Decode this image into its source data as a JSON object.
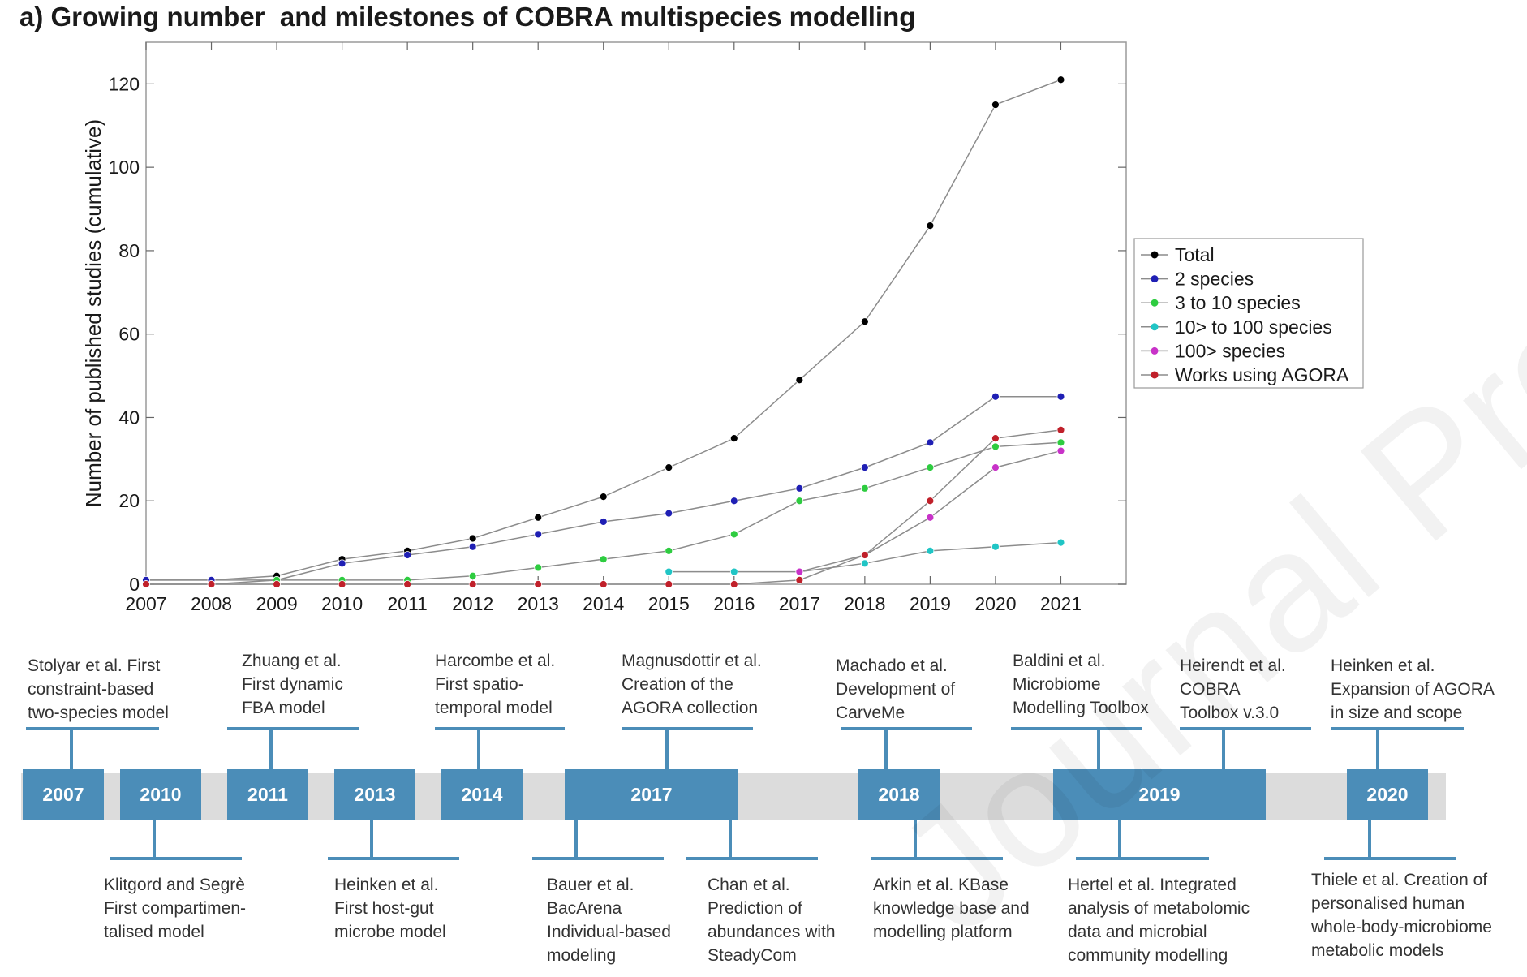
{
  "title": "a) Growing number  and milestones of COBRA multispecies modelling",
  "watermark": "Journal Pre-proof",
  "chart_data": {
    "type": "line",
    "ylabel": "Number of published studies (cumulative)",
    "xlabel": "",
    "x": [
      2007,
      2008,
      2009,
      2010,
      2011,
      2012,
      2013,
      2014,
      2015,
      2016,
      2017,
      2018,
      2019,
      2020,
      2021
    ],
    "xlim": [
      2007,
      2022
    ],
    "ylim": [
      0,
      130
    ],
    "yticks": [
      0,
      20,
      40,
      60,
      80,
      100,
      120
    ],
    "grid": false,
    "legend_position": "right",
    "series": [
      {
        "name": "Total",
        "color": "#000000",
        "values": [
          1,
          1,
          2,
          6,
          8,
          11,
          16,
          21,
          28,
          35,
          49,
          63,
          86,
          115,
          121
        ]
      },
      {
        "name": "2 species",
        "color": "#1f1fb4",
        "values": [
          1,
          1,
          1,
          5,
          7,
          9,
          12,
          15,
          17,
          20,
          23,
          28,
          34,
          45,
          45
        ]
      },
      {
        "name": "3 to 10 species",
        "color": "#2ecc40",
        "values": [
          0,
          0,
          1,
          1,
          1,
          2,
          4,
          6,
          8,
          12,
          20,
          23,
          28,
          33,
          34
        ]
      },
      {
        "name": "10> to 100 species",
        "color": "#20c5c5",
        "start": 2015,
        "values": [
          null,
          null,
          null,
          null,
          null,
          null,
          null,
          null,
          3,
          3,
          3,
          5,
          8,
          9,
          10
        ]
      },
      {
        "name": "100> species",
        "color": "#c832c8",
        "start": 2017,
        "values": [
          null,
          null,
          null,
          null,
          null,
          null,
          null,
          null,
          null,
          null,
          3,
          7,
          16,
          28,
          32
        ]
      },
      {
        "name": "Works using AGORA",
        "color": "#c0202a",
        "values": [
          0,
          0,
          0,
          0,
          0,
          0,
          0,
          0,
          0,
          0,
          1,
          7,
          20,
          35,
          37
        ]
      }
    ]
  },
  "timeline": {
    "years": [
      {
        "label": "2007"
      },
      {
        "label": "2010"
      },
      {
        "label": "2011"
      },
      {
        "label": "2013"
      },
      {
        "label": "2014"
      },
      {
        "label": "2017"
      },
      {
        "label": "2018"
      },
      {
        "label": "2019"
      },
      {
        "label": "2020"
      }
    ],
    "top_milestones": [
      {
        "text": "Stolyar et al. First\nconstraint-based\ntwo-species model"
      },
      {
        "text": "Zhuang et al.\nFirst dynamic\nFBA model"
      },
      {
        "text": "Harcombe et al.\nFirst spatio-\ntemporal model"
      },
      {
        "text": "Magnusdottir et al.\nCreation of the\nAGORA collection"
      },
      {
        "text": "Machado et al.\nDevelopment of\nCarveMe"
      },
      {
        "text": "Baldini et al.\nMicrobiome\nModelling Toolbox"
      },
      {
        "text": "Heirendt et al.\nCOBRA\nToolbox v.3.0"
      },
      {
        "text": "Heinken et al.\nExpansion of AGORA\nin size and scope"
      }
    ],
    "bottom_milestones": [
      {
        "text": "Klitgord and Segrè\nFirst compartimen-\ntalised model"
      },
      {
        "text": "Heinken et al.\nFirst host-gut\nmicrobe model"
      },
      {
        "text": "Bauer et al.\nBacArena\nIndividual-based\nmodeling"
      },
      {
        "text": "Chan et al.\nPrediction of\nabundances with\nSteadyCom"
      },
      {
        "text": "Arkin et al. KBase\nknowledge base and\nmodelling platform"
      },
      {
        "text": "Hertel et al. Integrated\nanalysis of metabolomic\ndata and microbial\ncommunity modelling"
      },
      {
        "text": "Thiele et al. Creation of\npersonalised human\nwhole-body-microbiome\nmetabolic models"
      }
    ]
  }
}
